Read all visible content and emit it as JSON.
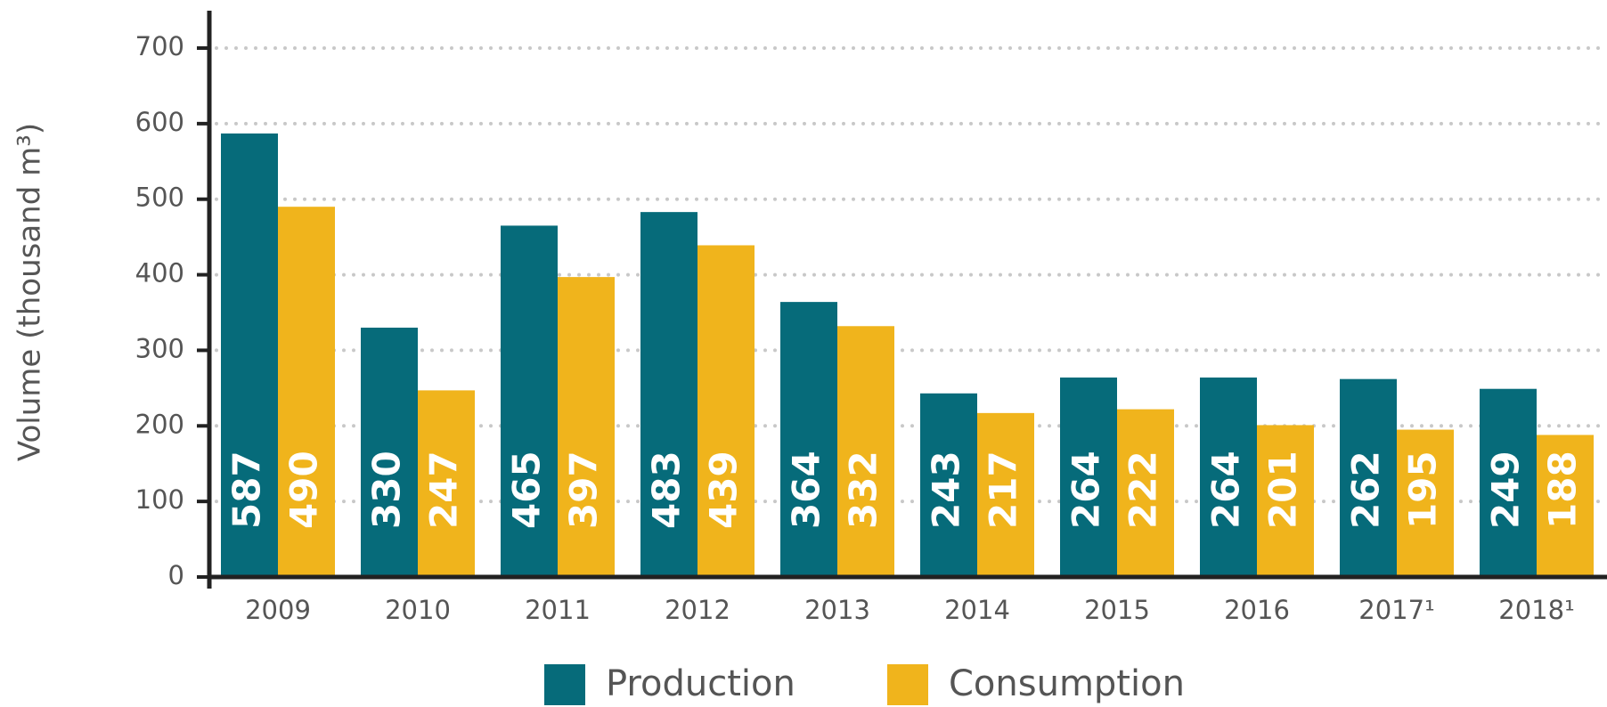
{
  "chart_data": {
    "type": "bar",
    "y_label": "Volume (thousand m³)",
    "categories": [
      "2009",
      "2010",
      "2011",
      "2012",
      "2013",
      "2014",
      "2015",
      "2016",
      "2017¹",
      "2018¹"
    ],
    "series": [
      {
        "name": "Production",
        "color": "#066b7a",
        "values": [
          587,
          330,
          465,
          483,
          364,
          243,
          264,
          264,
          262,
          249
        ]
      },
      {
        "name": "Consumption",
        "color": "#f0b41c",
        "values": [
          490,
          247,
          397,
          439,
          332,
          217,
          222,
          201,
          195,
          188
        ]
      }
    ],
    "ylim": [
      0,
      700
    ],
    "yticks": [
      0,
      100,
      200,
      300,
      400,
      500,
      600,
      700
    ],
    "grid": true,
    "legend": "bottom"
  }
}
